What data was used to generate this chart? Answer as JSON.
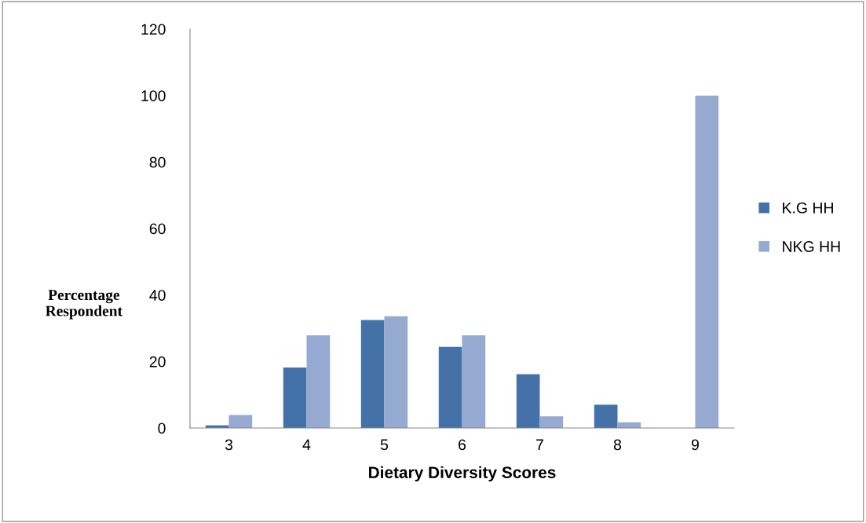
{
  "chart_data": {
    "type": "bar",
    "xlabel": "Dietary Diversity Scores",
    "ylabel": "Percentage\nRespondent",
    "categories": [
      "3",
      "4",
      "5",
      "6",
      "7",
      "8",
      "9"
    ],
    "series": [
      {
        "name": "K.G HH",
        "color": "#4472a8",
        "values": [
          0.8,
          18.2,
          32.5,
          24.4,
          16.2,
          7.0,
          0
        ]
      },
      {
        "name": "NKG HH",
        "color": "#95a9d1",
        "values": [
          3.9,
          27.9,
          33.6,
          27.9,
          3.5,
          1.7,
          100
        ]
      }
    ],
    "ylim": [
      0,
      120
    ],
    "yticks": [
      0,
      20,
      40,
      60,
      80,
      100,
      120
    ],
    "grid": false,
    "legend": "right"
  }
}
